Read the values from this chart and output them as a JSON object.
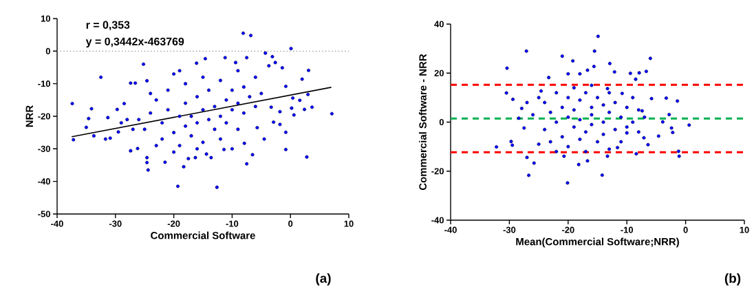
{
  "chart_data": [
    {
      "type": "scatter",
      "xlabel": "Commercial Software",
      "ylabel": "NRR",
      "xlim": [
        -40,
        10
      ],
      "ylim": [
        -50,
        10
      ],
      "xticks": [
        -40,
        -30,
        -20,
        -10,
        0,
        10
      ],
      "yticks": [
        -50,
        -40,
        -30,
        -20,
        -10,
        0,
        10
      ],
      "annotations": [
        "r = 0,353",
        "y = 0,3442x-463769",
        "(a)"
      ],
      "ref_lines": [
        {
          "axis": "y",
          "value": 0,
          "label": null,
          "color": "#808080",
          "line_style": "dotted"
        }
      ],
      "series": [
        {
          "marker": "circle",
          "color": "#0000ff",
          "x": [
            -37.4,
            -37.2,
            -32.5,
            -35.0,
            -34.1,
            -34.6,
            -33.7,
            -31.7,
            -30.9,
            -31.3,
            -29.7,
            -29.5,
            -28.5,
            -27.4,
            -26.6,
            -25.2,
            -24.6,
            -27.4,
            -26.2,
            -24.6,
            -24.4,
            -24.6,
            -21.5,
            -19.3,
            -18.3,
            -17.5,
            -16.3,
            -14.6,
            -16.1,
            -12.6,
            -14.4,
            -13.6,
            -11.4,
            -10.0,
            -8.1,
            -6.8,
            -7.5,
            -11.2,
            -9.4,
            -7.5,
            -6.5,
            -7.9,
            -4.3,
            -3.1,
            -2.6,
            -1.4,
            0.1,
            -3.7,
            -0.8,
            -0.8,
            -0.8,
            -1.8,
            -1.8,
            0.4,
            0.6,
            1.6,
            2.0,
            3.1,
            2.8,
            2.4,
            3.0,
            3.7,
            7.1,
            0.2,
            -4.5,
            -5.7,
            -2.9,
            -3.3,
            -26,
            -25,
            -24,
            -23,
            -22,
            -22,
            -21,
            -21,
            -20,
            -20,
            -19,
            -19,
            -18,
            -18,
            -18,
            -17,
            -17,
            -16,
            -16,
            -15,
            -15,
            -15,
            -14,
            -14,
            -13,
            -13,
            -12,
            -12,
            -12,
            -11,
            -11,
            -10,
            -10,
            -9,
            -9,
            -9,
            -8,
            -8,
            -7,
            -6,
            -6,
            -5,
            -24,
            -23,
            -27,
            -28,
            -29,
            -20,
            -16,
            -19
          ],
          "values": [
            -16.1,
            -27.2,
            -8.0,
            -23.4,
            -17.7,
            -20.7,
            -26.0,
            -27.0,
            -26.7,
            -20.4,
            -17.9,
            -24.8,
            -16.1,
            -9.8,
            -9.8,
            -4.0,
            -9.1,
            -30.6,
            -29.9,
            -32.7,
            -36.5,
            -34.2,
            -34.1,
            -41.5,
            -35.5,
            -33.0,
            -32.7,
            -2.3,
            -3.7,
            -41.8,
            -31.6,
            -32.7,
            -30.2,
            -30.0,
            5.5,
            4.8,
            -2.0,
            -2.0,
            -3.5,
            -34.6,
            -31.8,
            -28.3,
            -0.6,
            -1.7,
            -3.5,
            -5.1,
            0.8,
            -4.5,
            -10.8,
            -24.9,
            -30.2,
            -18.6,
            -22.5,
            -14.4,
            -19.6,
            -15.1,
            -8.6,
            -5.9,
            -32.5,
            -17.9,
            -13.3,
            -17.2,
            -19.2,
            -17.5,
            -27.0,
            -23.5,
            -21.8,
            -17.2,
            -21,
            -24,
            -19,
            -15,
            -22,
            -27,
            -18,
            -12,
            -25,
            -7,
            -20,
            -29,
            -16,
            -23,
            -10,
            -20,
            -26,
            -14,
            -22,
            -18,
            -8,
            -28,
            -21,
            -12,
            -24,
            -17,
            -9,
            -20,
            -27,
            -15,
            -22,
            -12,
            -18,
            -6,
            -16,
            -24,
            -19,
            -11,
            -14,
            -17,
            -8,
            -13,
            -13,
            -29,
            -24,
            -21,
            -22,
            -31,
            -30,
            -6
          ]
        },
        {
          "type": "line",
          "marker": "none",
          "color": "#000000",
          "x": [
            -37.5,
            7
          ],
          "values": [
            -26.3,
            -11.1
          ]
        }
      ]
    },
    {
      "type": "scatter",
      "xlabel": "Mean(Commercial Software;NRR)",
      "ylabel": "Commercial Software - NRR",
      "xlim": [
        -40,
        10
      ],
      "ylim": [
        -40,
        40
      ],
      "xticks": [
        -40,
        -30,
        -20,
        -10,
        0,
        10
      ],
      "yticks": [
        -40,
        -20,
        0,
        20,
        40
      ],
      "annotations": [
        "(b)"
      ],
      "ref_lines": [
        {
          "axis": "y",
          "value": 15.2,
          "label": null,
          "color": "#ff0000",
          "line_style": "dashed"
        },
        {
          "axis": "y",
          "value": 1.5,
          "label": null,
          "color": "#00b050",
          "line_style": "dashed"
        },
        {
          "axis": "y",
          "value": -12.3,
          "label": null,
          "color": "#ff0000",
          "line_style": "dashed"
        }
      ],
      "series": [
        {
          "marker": "circle",
          "color": "#0000ff",
          "x": [
            -27.1,
            -30.4,
            -32.2,
            -30.5,
            -29.4,
            -29.7,
            -29.5,
            -26.7,
            -25.8,
            -27.0,
            -21.0,
            -19.2,
            -20.0,
            -18.0,
            -16.7,
            -15.6,
            -14.9,
            -15.5,
            -12.9,
            -12.1,
            -9.4,
            -7.9,
            -6.7,
            -6.0,
            -8.5,
            -5.8,
            -3.3,
            -1.4,
            -2.8,
            -2.4,
            -2.2,
            -3.9,
            0.6,
            -4.6,
            -6.4,
            -1.2,
            -1.1,
            -8.4,
            -14.2,
            -20.1,
            -18.2,
            -16.7,
            -20.7,
            -13.3,
            -11.6,
            -10.0,
            -7.1,
            -7.4,
            -10.8,
            -13.3,
            -23.3,
            -24.6,
            -27.9,
            -28.4,
            -27.5,
            -24,
            -24,
            -23,
            -23,
            -22,
            -22,
            -21,
            -21,
            -20,
            -20,
            -20,
            -19,
            -19,
            -19,
            -18,
            -18,
            -18,
            -17,
            -17,
            -17,
            -16,
            -16,
            -16,
            -15,
            -15,
            -14,
            -14,
            -14,
            -13,
            -13,
            -12,
            -12,
            -11,
            -11,
            -10,
            -10,
            -9,
            -9,
            -8,
            -8,
            -7,
            -26,
            -25,
            -25,
            -27,
            -13,
            -22,
            -16
          ],
          "values": [
            29.0,
            22.0,
            -10.1,
            11.9,
            9.3,
            -7.9,
            -9.4,
            -21.7,
            -16.7,
            -14.4,
            26.9,
            25.0,
            19.7,
            19.7,
            21.2,
            22.7,
            35.0,
            29.0,
            23.9,
            20.5,
            19.9,
            20.1,
            20.7,
            26.0,
            17.5,
            9.6,
            9.8,
            8.6,
            3.1,
            -2.4,
            -4.2,
            0.1,
            -1.2,
            -5.7,
            -9.2,
            -11.9,
            -13.9,
            -12.9,
            -21.6,
            -24.8,
            -17.3,
            -15.8,
            -13.9,
            -13.9,
            -10.4,
            -4.4,
            -6.4,
            4.6,
            11.7,
            13.7,
            18.2,
            12.7,
            5.6,
            1.6,
            -2.4,
            8,
            -3,
            4,
            -8,
            12,
            0,
            6,
            -6,
            10,
            2,
            -10,
            14,
            -2,
            5,
            -7,
            9,
            1,
            12,
            -4,
            -12,
            6,
            -1,
            3,
            10,
            -8,
            0,
            7,
            -5,
            4,
            12,
            -3,
            8,
            2,
            -8,
            6,
            -2,
            10,
            0,
            -4,
            5,
            2,
            3,
            -9,
            10,
            8,
            -11,
            -12,
            15
          ]
        }
      ]
    }
  ]
}
